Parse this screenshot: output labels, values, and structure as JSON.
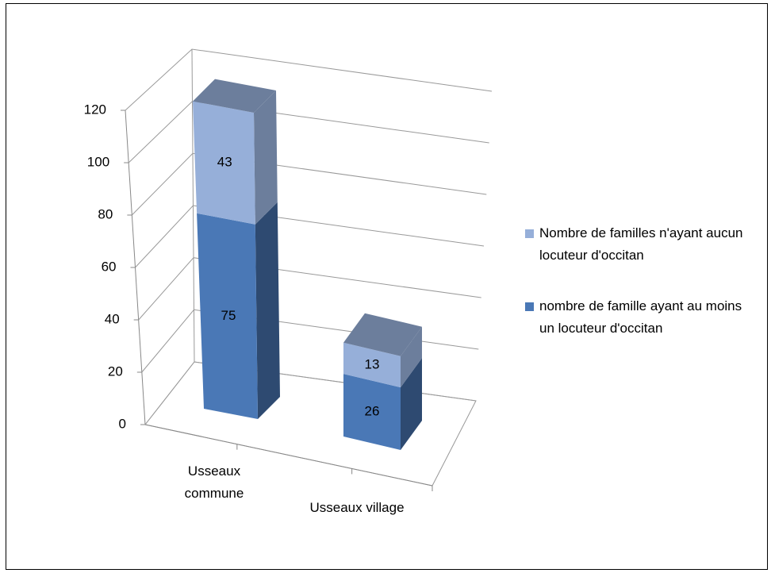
{
  "chart_data": {
    "type": "bar3d_stacked",
    "categories": [
      "Usseaux commune",
      "Usseaux village"
    ],
    "series": [
      {
        "name": "nombre de famille ayant au moins un locuteur d'occitan",
        "color": "#4a78b6",
        "values": [
          75,
          26
        ]
      },
      {
        "name": "Nombre de familles n'ayant aucun locuteur d'occitan",
        "color": "#96afd9",
        "values": [
          43,
          13
        ]
      }
    ],
    "ylim": [
      0,
      120
    ],
    "yticks": [
      0,
      20,
      40,
      60,
      80,
      100,
      120
    ],
    "grid": true,
    "legend": "right"
  }
}
